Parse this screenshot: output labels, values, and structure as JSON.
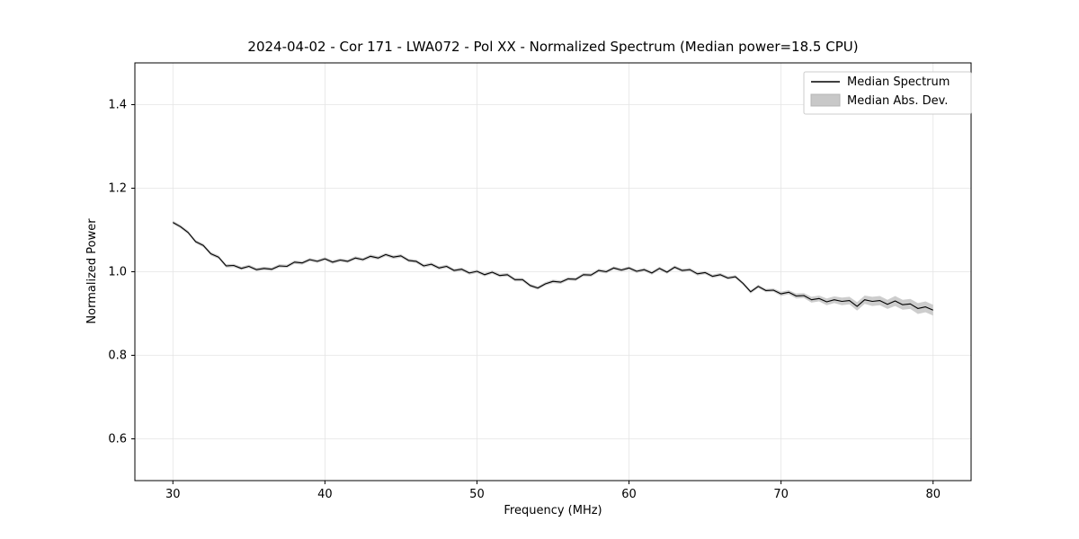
{
  "chart_data": {
    "type": "line",
    "title": "2024-04-02 - Cor 171 - LWA072 - Pol XX - Normalized Spectrum (Median power=18.5 CPU)",
    "xlabel": "Frequency (MHz)",
    "ylabel": "Normalized Power",
    "xlim": [
      27.5,
      82.5
    ],
    "ylim": [
      0.5,
      1.5
    ],
    "xticks": [
      30,
      40,
      50,
      60,
      70,
      80
    ],
    "xticklabels": [
      "30",
      "40",
      "50",
      "60",
      "70",
      "80"
    ],
    "yticks": [
      0.6,
      0.8,
      1.0,
      1.2,
      1.4
    ],
    "yticklabels": [
      "0.6",
      "0.8",
      "1.0",
      "1.2",
      "1.4"
    ],
    "grid": true,
    "legend_position": "upper right",
    "colors": {
      "line": "#000000",
      "band": "#c8c8c8",
      "grid": "#e4e4e4"
    },
    "x_start": 30.0,
    "x_step": 0.5,
    "series": [
      {
        "name": "Median Spectrum",
        "type": "line",
        "color": "#000000",
        "values": [
          1.118,
          1.108,
          1.094,
          1.072,
          1.063,
          1.043,
          1.035,
          1.014,
          1.015,
          1.008,
          1.013,
          1.005,
          1.008,
          1.006,
          1.014,
          1.013,
          1.023,
          1.021,
          1.029,
          1.025,
          1.031,
          1.023,
          1.028,
          1.025,
          1.033,
          1.029,
          1.037,
          1.033,
          1.041,
          1.035,
          1.038,
          1.027,
          1.025,
          1.014,
          1.018,
          1.009,
          1.013,
          1.003,
          1.006,
          0.997,
          1.001,
          0.993,
          0.999,
          0.991,
          0.993,
          0.981,
          0.981,
          0.967,
          0.961,
          0.971,
          0.977,
          0.975,
          0.983,
          0.982,
          0.993,
          0.992,
          1.003,
          1.0,
          1.009,
          1.004,
          1.009,
          1.001,
          1.005,
          0.997,
          1.008,
          0.999,
          1.011,
          1.003,
          1.005,
          0.995,
          0.998,
          0.989,
          0.993,
          0.985,
          0.988,
          0.972,
          0.952,
          0.965,
          0.955,
          0.956,
          0.947,
          0.951,
          0.942,
          0.943,
          0.933,
          0.936,
          0.928,
          0.933,
          0.929,
          0.931,
          0.917,
          0.933,
          0.929,
          0.931,
          0.922,
          0.93,
          0.921,
          0.923,
          0.912,
          0.916,
          0.908
        ]
      },
      {
        "name": "Median Abs. Dev.",
        "type": "band",
        "color": "#c8c8c8",
        "values": [
          0.004,
          0.004,
          0.004,
          0.004,
          0.004,
          0.004,
          0.004,
          0.004,
          0.004,
          0.004,
          0.004,
          0.004,
          0.004,
          0.004,
          0.004,
          0.004,
          0.004,
          0.004,
          0.004,
          0.004,
          0.004,
          0.004,
          0.004,
          0.004,
          0.004,
          0.004,
          0.004,
          0.004,
          0.004,
          0.004,
          0.004,
          0.004,
          0.004,
          0.004,
          0.004,
          0.004,
          0.004,
          0.004,
          0.004,
          0.004,
          0.004,
          0.004,
          0.004,
          0.004,
          0.004,
          0.004,
          0.004,
          0.004,
          0.004,
          0.004,
          0.004,
          0.004,
          0.004,
          0.004,
          0.004,
          0.004,
          0.004,
          0.004,
          0.004,
          0.004,
          0.004,
          0.004,
          0.004,
          0.004,
          0.004,
          0.004,
          0.004,
          0.004,
          0.004,
          0.004,
          0.004,
          0.004,
          0.004,
          0.004,
          0.004,
          0.004,
          0.004,
          0.004,
          0.004,
          0.004,
          0.005,
          0.005,
          0.006,
          0.006,
          0.007,
          0.007,
          0.008,
          0.008,
          0.009,
          0.009,
          0.01,
          0.01,
          0.011,
          0.011,
          0.011,
          0.012,
          0.012,
          0.012,
          0.013,
          0.013,
          0.013
        ]
      }
    ]
  }
}
